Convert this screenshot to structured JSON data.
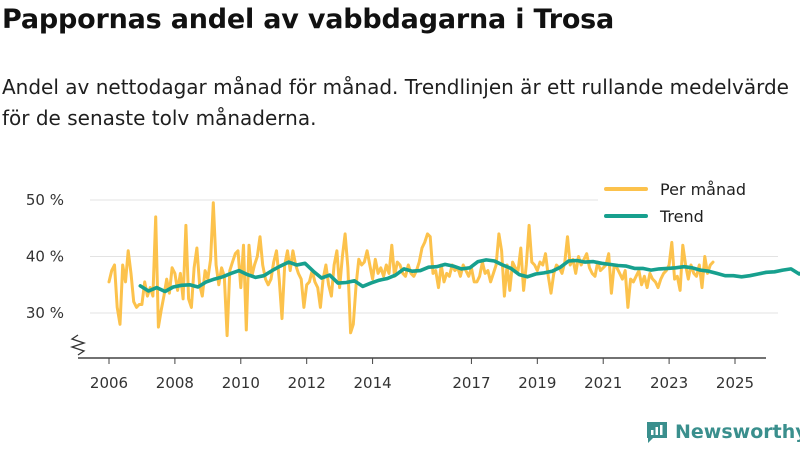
{
  "title": "Pappornas andel av vabbdagarna i Trosa",
  "subtitle": "Andel av nettodagar månad för månad. Trendlinjen är ett rullande medelvärde för de senaste tolv månaderna.",
  "logo_text": "Newsworthy",
  "colors": {
    "monthly": "#fcc24c",
    "trend": "#17a08e",
    "grid": "#e3e3e3",
    "axis": "#444444"
  },
  "chart_data": {
    "type": "line",
    "ylim": [
      25,
      50
    ],
    "xlim": [
      2005.5,
      2026.0
    ],
    "y_ticks": [
      {
        "value": 30,
        "label": "30 %"
      },
      {
        "value": 40,
        "label": "40 %"
      },
      {
        "value": 50,
        "label": "50 %"
      }
    ],
    "x_ticks": [
      {
        "value": 2006,
        "label": "2006"
      },
      {
        "value": 2008,
        "label": "2008"
      },
      {
        "value": 2010,
        "label": "2010"
      },
      {
        "value": 2012,
        "label": "2012"
      },
      {
        "value": 2014,
        "label": "2014"
      },
      {
        "value": 2017,
        "label": "2017"
      },
      {
        "value": 2019,
        "label": "2019"
      },
      {
        "value": 2021,
        "label": "2021"
      },
      {
        "value": 2023,
        "label": "2023"
      },
      {
        "value": 2025,
        "label": "2025"
      }
    ],
    "legend": {
      "position": "top-right",
      "entries": [
        "Per månad",
        "Trend"
      ]
    },
    "series": [
      {
        "name": "Per månad",
        "start_year": 2006.0,
        "step": 0.08333,
        "values": [
          35.5,
          37.5,
          38.5,
          31,
          28,
          38.5,
          35.5,
          41,
          37,
          32,
          31,
          31.5,
          31.5,
          35.5,
          33,
          34.5,
          33,
          47,
          27.5,
          30.5,
          33,
          36,
          33.5,
          38,
          37,
          34,
          37,
          32.5,
          45.5,
          32.5,
          31,
          38,
          41.5,
          35,
          33,
          37.5,
          36,
          39.5,
          49.5,
          38.5,
          35,
          38,
          36.5,
          26,
          37.5,
          39,
          40.5,
          41,
          34.5,
          42,
          27,
          42,
          36.5,
          38.5,
          40,
          43.5,
          38.5,
          36,
          35,
          36,
          39,
          41,
          36,
          29,
          38.5,
          41,
          37.5,
          41,
          38.5,
          37,
          36,
          31,
          35,
          35.5,
          37.5,
          35.5,
          34.5,
          31,
          36,
          38.5,
          35,
          33,
          38.5,
          41,
          34.5,
          40,
          44,
          38,
          26.5,
          28,
          35,
          39.5,
          38.5,
          39,
          41,
          38.5,
          36,
          39.5,
          37,
          38,
          36.5,
          38.5,
          37,
          42,
          36.5,
          39,
          38.5,
          37,
          36.5,
          38.5,
          37,
          36.5,
          37.5,
          39,
          41.5,
          42.5,
          44,
          43.5,
          37,
          37.5,
          34.5,
          38.5,
          35.5,
          37,
          36.5,
          38.5,
          37.5,
          38,
          36.5,
          38.5,
          37.5,
          36.5,
          38,
          35.5,
          35.5,
          36.5,
          39,
          37,
          37.5,
          35.5,
          37,
          38.5,
          44,
          41,
          33,
          38.5,
          34,
          39,
          38,
          37.5,
          41.5,
          34,
          38.5,
          45.5,
          39,
          38.5,
          37.5,
          39,
          38.5,
          40.5,
          36.5,
          33.5,
          37,
          38.5,
          38,
          37,
          39,
          43.5,
          38.5,
          39.5,
          37,
          40,
          38.5,
          39.5,
          40.5,
          38,
          37,
          36.5,
          39,
          37.5,
          38,
          38.5,
          40.5,
          33.5,
          38.5,
          38,
          37,
          36,
          37.5,
          31,
          36,
          35.5,
          36.5,
          37.5,
          35,
          36.5,
          34.5,
          37,
          36,
          35.5,
          34.5,
          36,
          37,
          37.5,
          38.5,
          42.5,
          36,
          36.5,
          34,
          42,
          38.5,
          36,
          38.5,
          37,
          36.5,
          38.5,
          34.5,
          40,
          37,
          38.5,
          39
        ]
      },
      {
        "name": "Trend",
        "start_year": 2006.95,
        "step": 0.25,
        "values": [
          34.8,
          33.9,
          34.5,
          33.8,
          34.6,
          34.9,
          35.0,
          34.6,
          35.5,
          36.0,
          36.4,
          37.0,
          37.5,
          36.8,
          36.3,
          36.6,
          37.5,
          38.3,
          39.0,
          38.5,
          38.8,
          37.4,
          36.2,
          36.7,
          35.3,
          35.4,
          35.7,
          34.7,
          35.3,
          35.8,
          36.1,
          36.7,
          37.8,
          37.4,
          37.5,
          38.1,
          38.2,
          38.6,
          38.3,
          37.8,
          38.0,
          39.1,
          39.4,
          39.2,
          38.5,
          37.9,
          36.8,
          36.4,
          36.9,
          37.1,
          37.4,
          38.1,
          39.2,
          39.3,
          39.0,
          39.1,
          38.8,
          38.6,
          38.4,
          38.3,
          37.9,
          37.9,
          37.6,
          37.8,
          37.9,
          38.0,
          38.2,
          38.0,
          37.6,
          37.4,
          37.0,
          36.6,
          36.6,
          36.4,
          36.6,
          36.9,
          37.2,
          37.3,
          37.6,
          37.8,
          36.9,
          37.7
        ]
      }
    ]
  }
}
